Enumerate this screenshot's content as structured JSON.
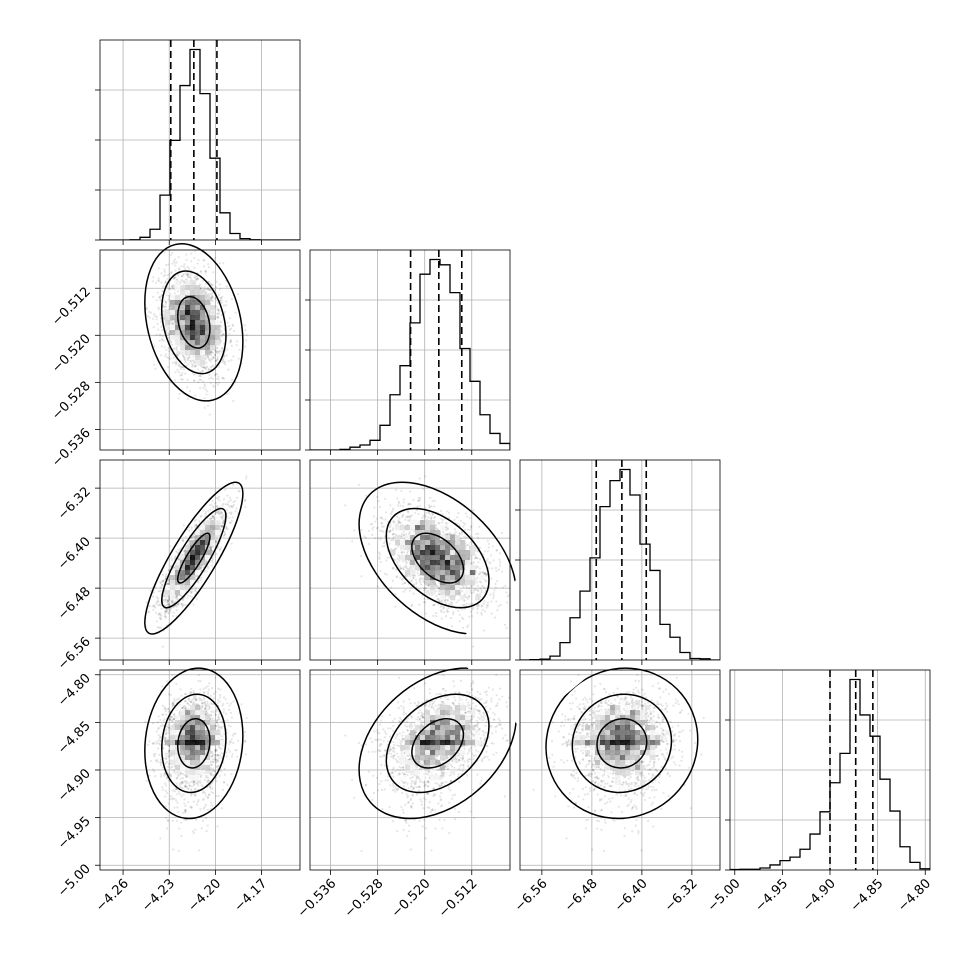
{
  "chart_data": {
    "type": "corner",
    "title": "",
    "grid": true,
    "parameters": [
      {
        "name": "",
        "range": [
          -4.275,
          -4.145
        ],
        "ticks": [
          -4.26,
          -4.23,
          -4.2,
          -4.17
        ],
        "tick_labels": [
          "−4.26",
          "−4.23",
          "−4.20",
          "−4.17"
        ],
        "quantiles": [
          -4.229,
          -4.214,
          -4.199
        ],
        "mean": -4.214,
        "sd": 0.0105,
        "skew": 0
      },
      {
        "name": "",
        "range": [
          -0.5395,
          -0.5055
        ],
        "ticks": [
          -0.536,
          -0.528,
          -0.52,
          -0.512
        ],
        "tick_labels": [
          "−0.536",
          "−0.528",
          "−0.520",
          "−0.512"
        ],
        "quantiles": [
          -0.5224,
          -0.5176,
          -0.5137
        ],
        "mean": -0.5178,
        "sd": 0.0044,
        "skew": 0
      },
      {
        "name": "",
        "range": [
          -6.595,
          -6.275
        ],
        "ticks": [
          -6.56,
          -6.48,
          -6.4,
          -6.32
        ],
        "tick_labels": [
          "−6.56",
          "−6.48",
          "−6.40",
          "−6.32"
        ],
        "quantiles": [
          -6.473,
          -6.432,
          -6.393
        ],
        "mean": -6.432,
        "sd": 0.04,
        "skew": 0
      },
      {
        "name": "",
        "range": [
          -5.005,
          -4.795
        ],
        "ticks": [
          -5.0,
          -4.95,
          -4.9,
          -4.85,
          -4.8
        ],
        "tick_labels": [
          "−5.00",
          "−4.95",
          "−4.90",
          "−4.85",
          "−4.80"
        ],
        "quantiles": [
          -4.9,
          -4.873,
          -4.855
        ],
        "mean": -4.872,
        "sd": 0.026,
        "skew": -0.8
      }
    ],
    "correlations": [
      {
        "pair": [
          1,
          0
        ],
        "rho": -0.25
      },
      {
        "pair": [
          2,
          0
        ],
        "rho": 0.85
      },
      {
        "pair": [
          2,
          1
        ],
        "rho": -0.45
      },
      {
        "pair": [
          3,
          0
        ],
        "rho": 0.1
      },
      {
        "pair": [
          3,
          1
        ],
        "rho": 0.35
      },
      {
        "pair": [
          3,
          2
        ],
        "rho": 0.05
      }
    ],
    "histogram_bins": 20,
    "contour_levels": [
      0.39,
      0.86,
      0.99
    ],
    "colors": {
      "line": "#000000",
      "points": "#000000",
      "grid": "#b0b0b0"
    }
  }
}
